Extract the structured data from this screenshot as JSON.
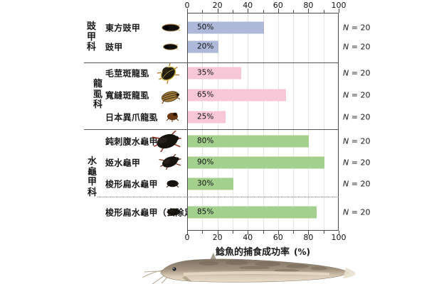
{
  "chart_data": {
    "type": "bar",
    "orientation": "horizontal",
    "xlabel": "鯰魚的捕食成功率",
    "xlabel_unit": "(%)",
    "xlim": [
      0,
      100
    ],
    "ticks_major": [
      0,
      20,
      40,
      60,
      80,
      100
    ],
    "ticks_minor": [
      10,
      30,
      50,
      70,
      90
    ],
    "grid": "vertical every 10",
    "legend": "none",
    "groups": [
      {
        "family": "豉甲科",
        "bar_color": "#aeb9da",
        "rows": [
          {
            "label": "東方豉甲",
            "value": 50,
            "value_label": "50%",
            "n_label": "N = 20"
          },
          {
            "label": "豉甲",
            "value": 20,
            "value_label": "20%",
            "n_label": "N = 20"
          }
        ]
      },
      {
        "family": "龍虱科",
        "bar_color": "#f7c6d7",
        "rows": [
          {
            "label": "毛莖斑龍虱",
            "value": 35,
            "value_label": "35%",
            "n_label": "N = 20"
          },
          {
            "label": "寬縫斑龍虱",
            "value": 65,
            "value_label": "65%",
            "n_label": "N = 20"
          },
          {
            "label": "日本異爪龍虱",
            "value": 25,
            "value_label": "25%",
            "n_label": "N = 20"
          }
        ]
      },
      {
        "family": "水龜甲科",
        "bar_color": "#a4d08e",
        "rows": [
          {
            "label": "鈍刺腹水龜甲",
            "value": 80,
            "value_label": "80%",
            "n_label": "N = 20"
          },
          {
            "label": "姬水龜甲",
            "value": 90,
            "value_label": "90%",
            "n_label": "N = 20"
          },
          {
            "label": "梭形扁水龜甲",
            "value": 30,
            "value_label": "30%",
            "n_label": "N = 20"
          },
          {
            "label": "梭形扁水龜甲（去除足）",
            "value": 85,
            "value_label": "85%",
            "n_label": "N = 20",
            "separated_by_dashed_line": true
          }
        ]
      }
    ]
  },
  "icons": {
    "row_icons": [
      "whirligig-beetle-icon",
      "whirligig-beetle-small-icon",
      "diving-beetle-striped-icon",
      "diving-beetle-banded-icon",
      "diving-beetle-small-icon",
      "water-scavenger-beetle-large-icon",
      "water-scavenger-beetle-medium-icon",
      "water-scavenger-beetle-small-icon",
      "water-scavenger-beetle-legless-icon"
    ],
    "footer_image": "catfish-photo"
  }
}
